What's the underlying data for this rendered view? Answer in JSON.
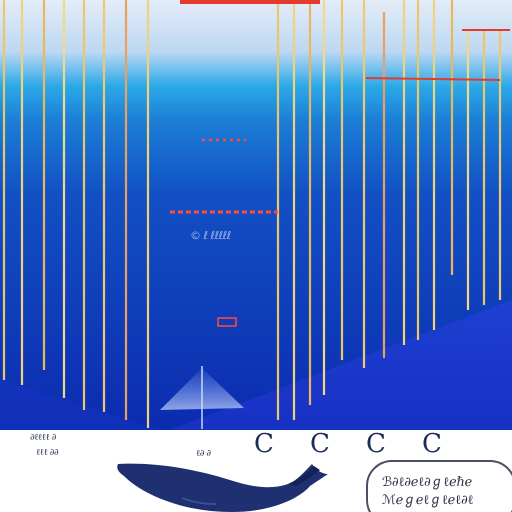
{
  "scene": {
    "top_banner": "",
    "mid_label": "© ℓ ℓℓℓℓℓ",
    "strip_left_squiggle": "∂ℓℓℓℓ ∂",
    "strip_under_squiggle": "ℓℓℓ ∂∂",
    "strip_mid_squiggle": "ℓ∂ ∂",
    "glyphs": [
      "C",
      "C",
      "C",
      "C"
    ],
    "caption_lines": [
      "ℬ∂ℓ∂ℯℓ∂ℊℓℯℏℯ",
      "ℳℯℊℯℓℊℓℯℓ∂ℓ"
    ]
  },
  "colors": {
    "sky_top": "#dfe8f7",
    "water_band": "#2aa6e6",
    "deep_blue": "#0c2fb8",
    "floor_blue": "#1b36d6",
    "line_gold": "#e8c86a",
    "line_red": "#e53a2e",
    "whale": "#1e3070"
  }
}
